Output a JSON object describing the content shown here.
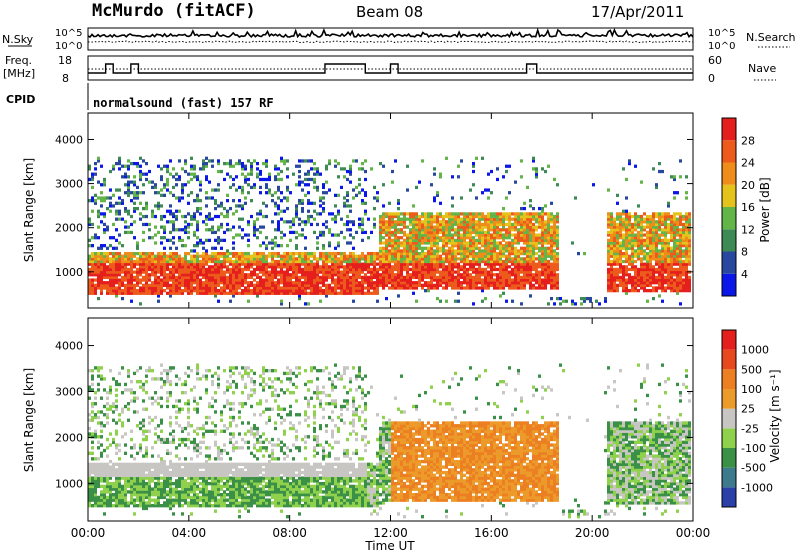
{
  "header": {
    "station": "McMurdo (fitACF)",
    "beam": "Beam 08",
    "date": "17/Apr/2011"
  },
  "sky_panel": {
    "left_label": "N.Sky",
    "right_label": "N.Search",
    "y_ticks": [
      "10^5",
      "10^0"
    ]
  },
  "freq_panel": {
    "left_label_1": "Freq.",
    "left_label_2": "[MHz]",
    "left_ticks": [
      "18",
      "8"
    ],
    "right_label": "Nave",
    "right_ticks": [
      "60",
      "0"
    ]
  },
  "cpid": {
    "label": "CPID",
    "text": "normalsound (fast) 157 RF"
  },
  "chart_data": [
    {
      "type": "heatmap",
      "title": "",
      "ylabel": "Slant Range [km]",
      "xlabel": "",
      "ylim": [
        180,
        4600
      ],
      "y_ticks": [
        "1000",
        "2000",
        "3000",
        "4000"
      ],
      "x_ticks": [
        "00:00",
        "04:00",
        "08:00",
        "12:00",
        "16:00",
        "20:00",
        "00:00"
      ],
      "colorbar_label": "Power [dB]",
      "colorbar_ticks": [
        "4",
        "8",
        "12",
        "16",
        "20",
        "24",
        "28"
      ],
      "colorbar_colors": [
        "#0b17e8",
        "#27489e",
        "#3d8a55",
        "#63b548",
        "#e4c41c",
        "#ef8d1a",
        "#ec5a1c",
        "#e51f1d"
      ],
      "strong_echo_hours": [
        0.0,
        18.7
      ]
    },
    {
      "type": "heatmap",
      "title": "",
      "ylabel": "Slant Range [km]",
      "xlabel": "Time UT",
      "ylim": [
        180,
        4600
      ],
      "y_ticks": [
        "1000",
        "2000",
        "3000",
        "4000"
      ],
      "x_ticks": [
        "00:00",
        "04:00",
        "08:00",
        "12:00",
        "16:00",
        "20:00",
        "00:00"
      ],
      "colorbar_label": "Velocity [m s⁻¹]",
      "colorbar_ticks": [
        "1000",
        "500",
        "100",
        "25",
        "-25",
        "-100",
        "-500",
        "-1000"
      ],
      "colorbar_colors": [
        "#2a3fa8",
        "#3d7a8c",
        "#3b9048",
        "#8fd14d",
        "#c8c6c2",
        "#ec9b2a",
        "#eb7f22",
        "#e8481d",
        "#e51f1d"
      ]
    }
  ]
}
